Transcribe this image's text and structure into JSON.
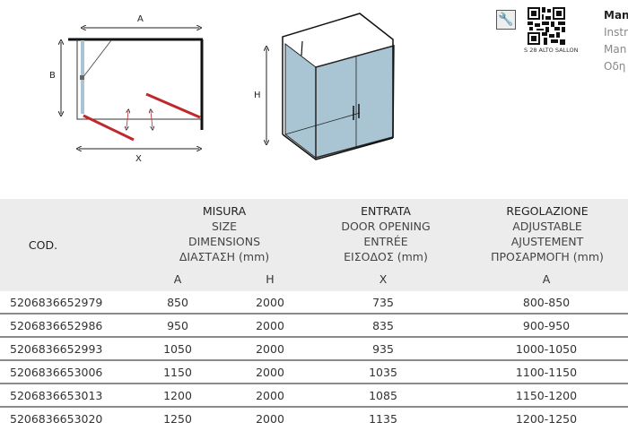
{
  "diagrams": {
    "plan_labels": {
      "a": "A",
      "b": "B",
      "x": "X"
    },
    "elevation_labels": {
      "h": "H"
    },
    "glass_color": "#a9c4d2",
    "door_color": "#c0282d"
  },
  "manual": {
    "icon": "wrench-icon",
    "qr_caption": "S 28 ALTO SALLON",
    "title": "Man",
    "lines": [
      "Instr",
      "Man",
      "Οδη"
    ]
  },
  "table": {
    "headers": {
      "code": "COD.",
      "size": [
        "MISURA",
        "SIZE",
        "DIMENSIONS",
        "ΔΙΑΣΤΑΣΗ (mm)"
      ],
      "opening": [
        "ENTRATA",
        "DOOR OPENING",
        "ENTRÉE",
        "ΕΙΣΟΔΟΣ (mm)"
      ],
      "adjust": [
        "REGOLAZIONE",
        "ADJUSTABLE",
        "AJUSTEMENT",
        "ΠΡΟΣΑΡΜΟΓΗ (mm)"
      ]
    },
    "subheaders": {
      "a": "A",
      "h": "H",
      "x": "X",
      "adj": "A"
    },
    "rows": [
      {
        "code": "5206836652979",
        "a": "850",
        "h": "2000",
        "x": "735",
        "adj": "800-850"
      },
      {
        "code": "5206836652986",
        "a": "950",
        "h": "2000",
        "x": "835",
        "adj": "900-950"
      },
      {
        "code": "5206836652993",
        "a": "1050",
        "h": "2000",
        "x": "935",
        "adj": "1000-1050"
      },
      {
        "code": "5206836653006",
        "a": "1150",
        "h": "2000",
        "x": "1035",
        "adj": "1100-1150"
      },
      {
        "code": "5206836653013",
        "a": "1200",
        "h": "2000",
        "x": "1085",
        "adj": "1150-1200"
      },
      {
        "code": "5206836653020",
        "a": "1250",
        "h": "2000",
        "x": "1135",
        "adj": "1200-1250"
      }
    ]
  }
}
